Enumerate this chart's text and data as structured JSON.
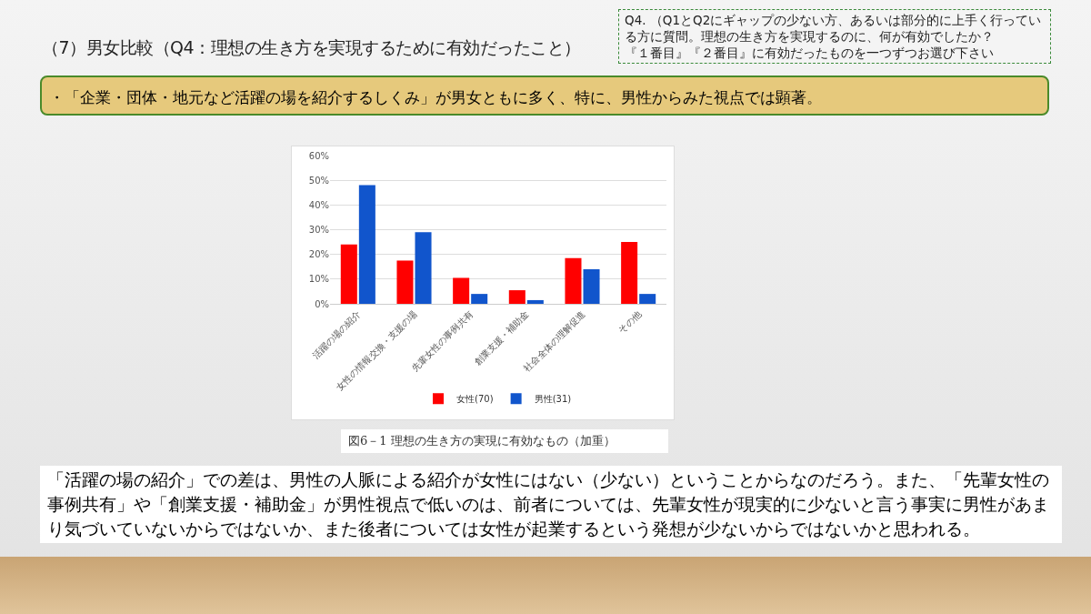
{
  "chart_data": {
    "type": "bar",
    "title": "（7）男女比較（Q4：理想の生き方を実現するために有効だったこと）",
    "subtitle": "・「企業・団体・地元など活躍の場を紹介するしくみ」が男女ともに多く、特に、男性からみた視点では顕著。",
    "annotations": [
      "Q4. （Q1とQ2にギャップの少ない方、あるいは部分的に上手く行っている方に質問。理想の生き方を実現するのに、何が有効でしたか？",
      "『１番目』『２番目』に有効だったものを一つずつお選び下さい",
      "図6－1 理想の生き方の実現に有効なもの（加重）",
      "「活躍の場の紹介」での差は、男性の人脈による紹介が女性にはない（少ない）ということからなのだろう。また、「先輩女性の事例共有」や「創業支援・補助金」が男性視点で低いのは、前者については、先輩女性が現実的に少ないと言う事実に男性があまり気づいていないからではないか、また後者については女性が起業するという発想が少ないからではないかと思われる。"
    ],
    "categories": [
      "活躍の場の紹介",
      "女性の情報交換・支援の場",
      "先輩女性の事例共有",
      "創業支援・補助金",
      "社会全体の理解促進",
      "その他"
    ],
    "series": [
      {
        "name": "女性(70)",
        "color": "#ff0000",
        "values": [
          24,
          17.5,
          10.5,
          5.5,
          18.5,
          25
        ]
      },
      {
        "name": "男性(31)",
        "color": "#1155cc",
        "values": [
          48,
          29,
          4,
          1.5,
          14,
          4
        ]
      }
    ],
    "ylim": [
      0,
      60
    ],
    "yticks": [
      {
        "value": 0,
        "label": "0%"
      },
      {
        "value": 10,
        "label": "10%"
      },
      {
        "value": 20,
        "label": "20%"
      },
      {
        "value": 30,
        "label": "30%"
      },
      {
        "value": 40,
        "label": "40%"
      },
      {
        "value": 50,
        "label": "50%"
      },
      {
        "value": 60,
        "label": "60%"
      }
    ],
    "grid": "y",
    "legend": "bottom"
  }
}
